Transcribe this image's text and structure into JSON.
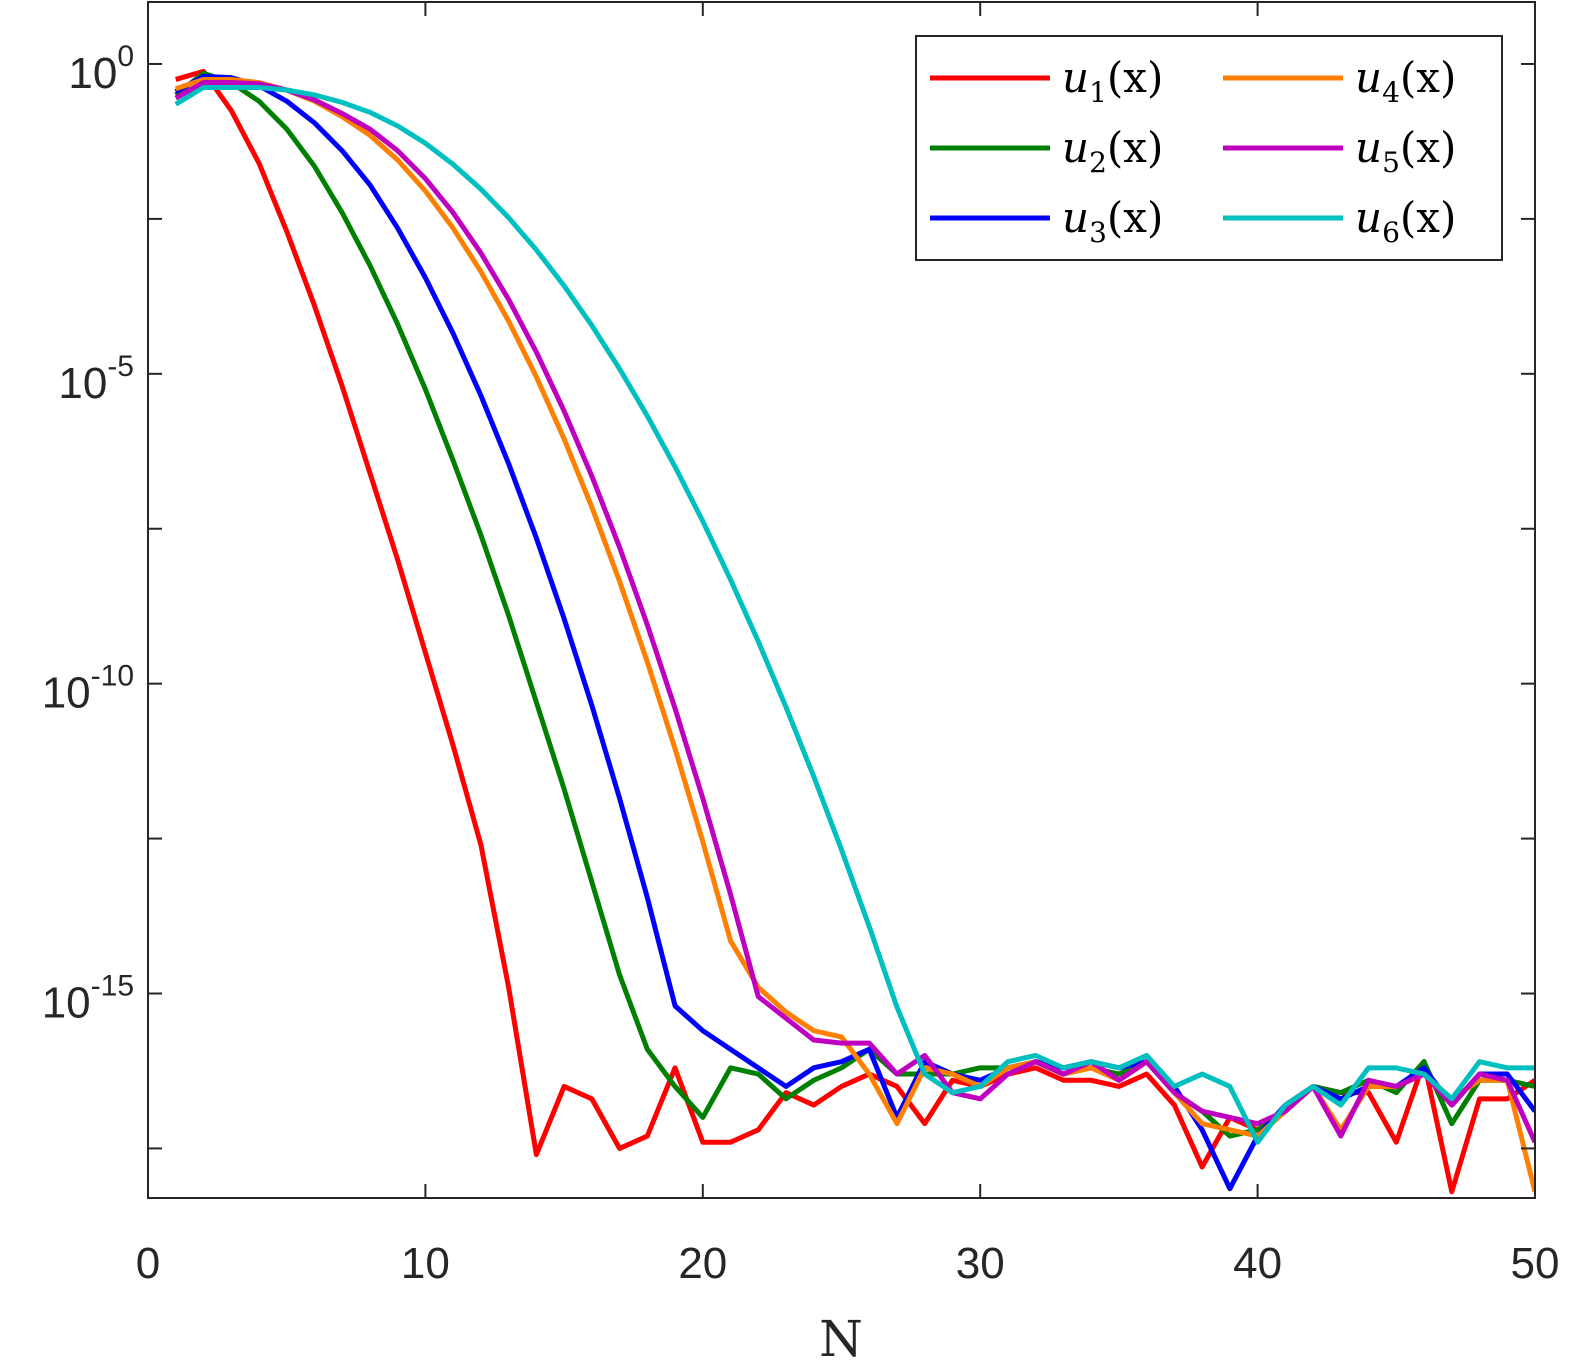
{
  "chart_data": {
    "type": "line",
    "title": "",
    "xlabel": "N",
    "ylabel": "",
    "yscale": "log",
    "xlim": [
      0,
      50
    ],
    "ylim_log10": [
      -18.3,
      1
    ],
    "grid": false,
    "legend_position": "top-right",
    "xticks": [
      0,
      10,
      20,
      30,
      40,
      50
    ],
    "xtick_labels": [
      "0",
      "10",
      "20",
      "30",
      "40",
      "50"
    ],
    "yticks_log10": [
      0,
      -5,
      -10,
      -15
    ],
    "ytick_base": "10",
    "ytick_exponents": [
      "0",
      "-5",
      "-10",
      "-15"
    ],
    "x": [
      1,
      2,
      3,
      4,
      5,
      6,
      7,
      8,
      9,
      10,
      11,
      12,
      13,
      14,
      15,
      16,
      17,
      18,
      19,
      20,
      21,
      22,
      23,
      24,
      25,
      26,
      27,
      28,
      29,
      30,
      31,
      32,
      33,
      34,
      35,
      36,
      37,
      38,
      39,
      40,
      41,
      42,
      43,
      44,
      45,
      46,
      47,
      48,
      49,
      50
    ],
    "series": [
      {
        "name": "u1(x)",
        "var": "u",
        "sub": "1",
        "arg": "(x)",
        "color": "#ff0000",
        "log10_values": [
          -0.25,
          -0.12,
          -0.75,
          -1.6,
          -2.7,
          -3.9,
          -5.2,
          -6.6,
          -8.0,
          -9.5,
          -11.0,
          -12.6,
          -14.9,
          -17.6,
          -16.5,
          -16.7,
          -17.5,
          -17.3,
          -16.2,
          -17.4,
          -17.4,
          -17.2,
          -16.6,
          -16.8,
          -16.5,
          -16.3,
          -16.5,
          -17.1,
          -16.4,
          -16.5,
          -16.3,
          -16.2,
          -16.4,
          -16.4,
          -16.5,
          -16.3,
          -16.8,
          -17.8,
          -17.0,
          -17.2,
          -16.9,
          -16.5,
          -16.6,
          -16.6,
          -17.4,
          -16.1,
          -18.2,
          -16.7,
          -16.7,
          -16.4
        ]
      },
      {
        "name": "u2(x)",
        "var": "u",
        "sub": "2",
        "arg": "(x)",
        "color": "#008000",
        "log10_values": [
          -0.5,
          -0.15,
          -0.3,
          -0.6,
          -1.05,
          -1.65,
          -2.4,
          -3.25,
          -4.2,
          -5.25,
          -6.4,
          -7.6,
          -8.9,
          -10.3,
          -11.7,
          -13.2,
          -14.7,
          -15.9,
          -16.5,
          -17.0,
          -16.2,
          -16.3,
          -16.7,
          -16.4,
          -16.2,
          -15.9,
          -16.3,
          -16.3,
          -16.3,
          -16.2,
          -16.2,
          -16.1,
          -16.3,
          -16.2,
          -16.3,
          -16.1,
          -16.6,
          -16.9,
          -17.3,
          -17.2,
          -16.9,
          -16.5,
          -16.6,
          -16.4,
          -16.6,
          -16.1,
          -17.1,
          -16.4,
          -16.4,
          -16.5
        ]
      },
      {
        "name": "u3(x)",
        "var": "u",
        "sub": "3",
        "arg": "(x)",
        "color": "#0000ff",
        "log10_values": [
          -0.45,
          -0.2,
          -0.22,
          -0.35,
          -0.6,
          -0.95,
          -1.4,
          -1.95,
          -2.65,
          -3.45,
          -4.35,
          -5.35,
          -6.45,
          -7.65,
          -8.95,
          -10.35,
          -11.85,
          -13.45,
          -15.2,
          -15.6,
          -15.9,
          -16.2,
          -16.5,
          -16.2,
          -16.1,
          -15.9,
          -17.0,
          -16.1,
          -16.3,
          -16.4,
          -16.2,
          -16.1,
          -16.2,
          -16.1,
          -16.2,
          -16.1,
          -16.5,
          -17.2,
          -18.15,
          -17.3,
          -16.8,
          -16.5,
          -16.7,
          -16.5,
          -16.5,
          -16.2,
          -16.8,
          -16.3,
          -16.3,
          -16.9
        ]
      },
      {
        "name": "u4(x)",
        "var": "u",
        "sub": "4",
        "arg": "(x)",
        "color": "#ff8000",
        "log10_values": [
          -0.4,
          -0.25,
          -0.25,
          -0.3,
          -0.42,
          -0.6,
          -0.85,
          -1.15,
          -1.55,
          -2.05,
          -2.65,
          -3.35,
          -4.15,
          -5.05,
          -6.05,
          -7.15,
          -8.35,
          -9.65,
          -11.05,
          -12.55,
          -14.15,
          -14.9,
          -15.3,
          -15.6,
          -15.7,
          -16.3,
          -17.1,
          -16.2,
          -16.3,
          -16.5,
          -16.2,
          -16.1,
          -16.3,
          -16.2,
          -16.4,
          -16.1,
          -16.6,
          -17.1,
          -17.2,
          -17.3,
          -16.9,
          -16.5,
          -17.2,
          -16.5,
          -16.5,
          -16.3,
          -16.7,
          -16.4,
          -16.4,
          -18.2
        ]
      },
      {
        "name": "u5(x)",
        "var": "u",
        "sub": "5",
        "arg": "(x)",
        "color": "#bf00bf",
        "log10_values": [
          -0.55,
          -0.3,
          -0.3,
          -0.32,
          -0.42,
          -0.58,
          -0.8,
          -1.05,
          -1.4,
          -1.85,
          -2.4,
          -3.05,
          -3.8,
          -4.65,
          -5.6,
          -6.65,
          -7.8,
          -9.05,
          -10.4,
          -11.85,
          -13.4,
          -15.05,
          -15.4,
          -15.75,
          -15.8,
          -15.8,
          -16.3,
          -16.0,
          -16.6,
          -16.7,
          -16.3,
          -16.1,
          -16.3,
          -16.1,
          -16.4,
          -16.1,
          -16.6,
          -16.9,
          -17.0,
          -17.1,
          -16.9,
          -16.5,
          -17.3,
          -16.4,
          -16.5,
          -16.3,
          -16.8,
          -16.3,
          -16.4,
          -17.4
        ]
      },
      {
        "name": "u6(x)",
        "var": "u",
        "sub": "6",
        "arg": "(x)",
        "color": "#00bfbf",
        "log10_values": [
          -0.65,
          -0.38,
          -0.38,
          -0.38,
          -0.42,
          -0.5,
          -0.62,
          -0.78,
          -1.0,
          -1.28,
          -1.62,
          -2.02,
          -2.48,
          -3.0,
          -3.58,
          -4.22,
          -4.92,
          -5.68,
          -6.5,
          -7.38,
          -8.32,
          -9.32,
          -10.38,
          -11.5,
          -12.68,
          -13.92,
          -15.22,
          -16.3,
          -16.6,
          -16.5,
          -16.1,
          -16.0,
          -16.2,
          -16.1,
          -16.2,
          -16.0,
          -16.5,
          -16.3,
          -16.5,
          -17.4,
          -16.8,
          -16.5,
          -16.8,
          -16.2,
          -16.2,
          -16.3,
          -16.7,
          -16.1,
          -16.2,
          -16.2
        ]
      }
    ]
  }
}
